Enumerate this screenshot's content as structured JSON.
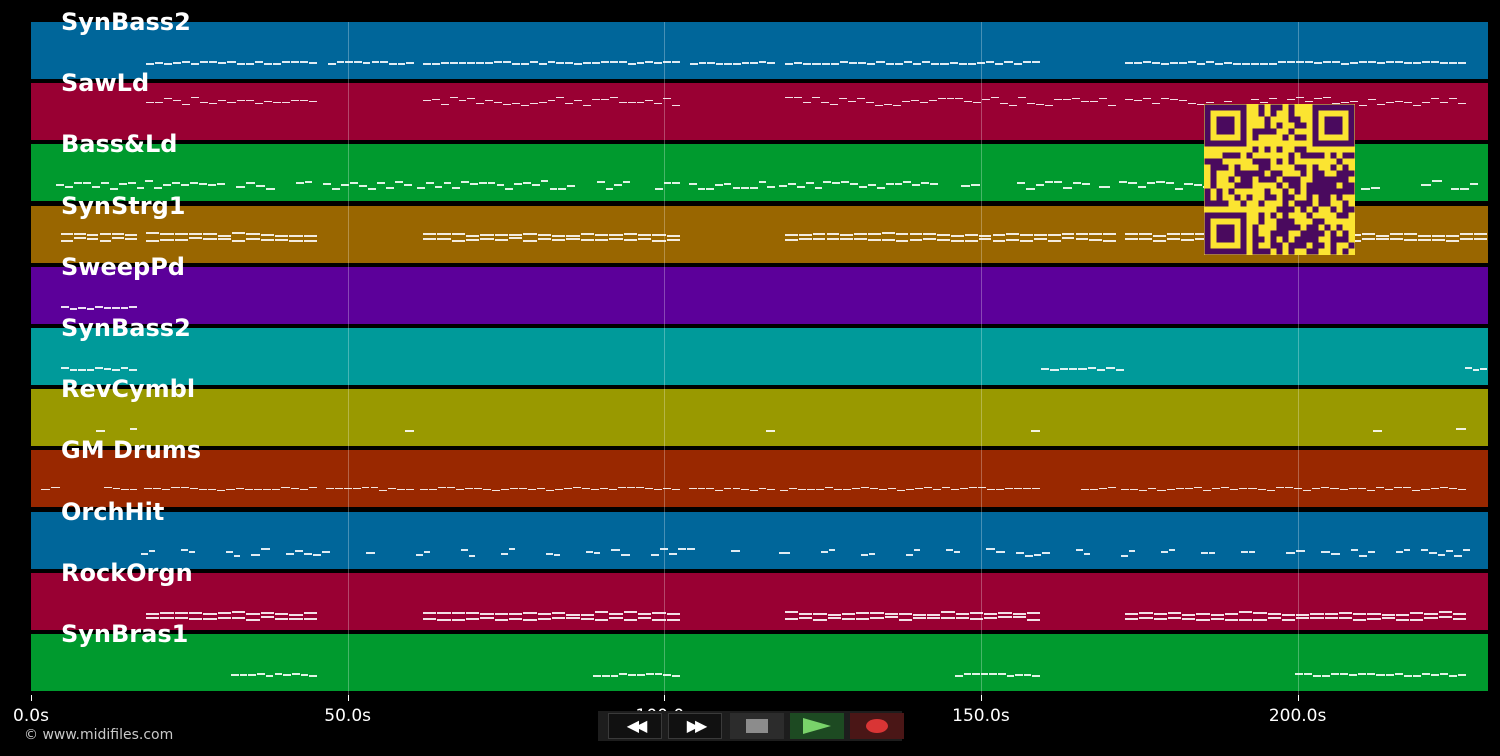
{
  "tracks": [
    {
      "name": "SynBass2",
      "color": "#00669a"
    },
    {
      "name": "SawLd",
      "color": "#990033"
    },
    {
      "name": "Bass&Ld",
      "color": "#009a2e"
    },
    {
      "name": "SynStrg1",
      "color": "#996600"
    },
    {
      "name": "SweepPd",
      "color": "#5c009a"
    },
    {
      "name": "SynBass2",
      "color": "#009a9a"
    },
    {
      "name": "RevCymbl",
      "color": "#999900"
    },
    {
      "name": "GM Drums",
      "color": "#992800"
    },
    {
      "name": "OrchHit",
      "color": "#00669a"
    },
    {
      "name": "RockOrgn",
      "color": "#990033"
    },
    {
      "name": "SynBras1",
      "color": "#009a2e"
    }
  ],
  "timeline": {
    "ticks": [
      "0.0s",
      "50.0s",
      "100.0s",
      "150.0s",
      "200.0s"
    ],
    "tick_values": [
      0,
      50,
      100,
      150,
      200
    ]
  },
  "copyright": "© www.midifiles.com",
  "transport": {
    "rewind_icon": "rewind-icon",
    "fast_forward_icon": "fast-forward-icon",
    "stop_icon": "stop-icon",
    "play_icon": "play-icon",
    "record_icon": "record-icon"
  },
  "qr_colors": {
    "fg": "#4a0a5e",
    "bg": "#fbe431"
  }
}
